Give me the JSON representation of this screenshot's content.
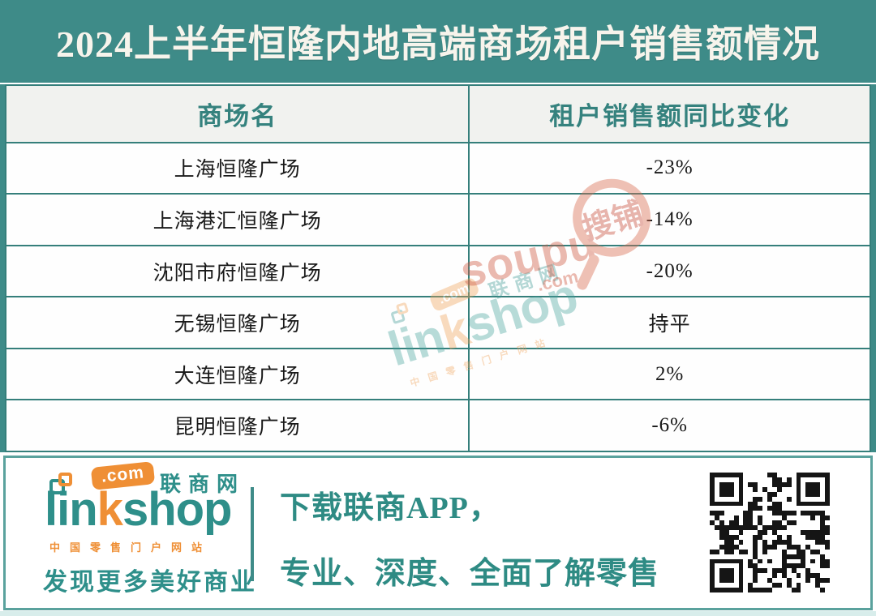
{
  "title": "2024上半年恒隆内地高端商场租户销售额情况",
  "table": {
    "headers": [
      "商场名",
      "租户销售额同比变化"
    ],
    "rows": [
      {
        "mall": "上海恒隆广场",
        "change": "-23%"
      },
      {
        "mall": "上海港汇恒隆广场",
        "change": "-14%"
      },
      {
        "mall": "沈阳市府恒隆广场",
        "change": "-20%"
      },
      {
        "mall": "无锡恒隆广场",
        "change": "持平"
      },
      {
        "mall": "大连恒隆广场",
        "change": "2%"
      },
      {
        "mall": "昆明恒隆广场",
        "change": "-6%"
      }
    ]
  },
  "footer": {
    "logo": {
      "brand_lin": "lin",
      "brand_k": "k",
      "brand_shop": "shop",
      "com_badge": ".com",
      "cn_name": "联商网",
      "tagline": "中国零售门户网站",
      "slogan": "发现更多美好商业"
    },
    "promo_line1": "下载联商APP，",
    "promo_line2": "专业、深度、全面了解零售"
  },
  "watermarks": {
    "linkshop": {
      "brand_lin": "lin",
      "brand_k": "k",
      "brand_shop": "shop",
      "com_badge": ".com",
      "cn_name": "联商网",
      "tagline": "中国零售门户网站"
    },
    "soupu": {
      "brand": "soupu",
      "com": ".com",
      "cn_name": "搜铺"
    }
  },
  "colors": {
    "band_teal": "#3e8b88",
    "border_teal": "#357f7b",
    "header_row_bg": "#f1f2ef",
    "header_text_teal": "#35827e",
    "logo_teal": "#2e8f8a",
    "logo_orange": "#ef8f35",
    "promo_teal": "#2e8b84",
    "watermark_red": "#cf5b45",
    "cell_text": "#191919",
    "title_text": "#f7f4ec"
  },
  "chart_data": {
    "type": "table",
    "title": "2024上半年恒隆内地高端商场租户销售额情况",
    "columns": [
      "商场名",
      "租户销售额同比变化"
    ],
    "rows": [
      [
        "上海恒隆广场",
        "-23%"
      ],
      [
        "上海港汇恒隆广场",
        "-14%"
      ],
      [
        "沈阳市府恒隆广场",
        "-20%"
      ],
      [
        "无锡恒隆广场",
        "持平"
      ],
      [
        "大连恒隆广场",
        "2%"
      ],
      [
        "昆明恒隆广场",
        "-6%"
      ]
    ],
    "yoy_changes_percent": [
      -23,
      -14,
      -20,
      0,
      2,
      -6
    ]
  }
}
